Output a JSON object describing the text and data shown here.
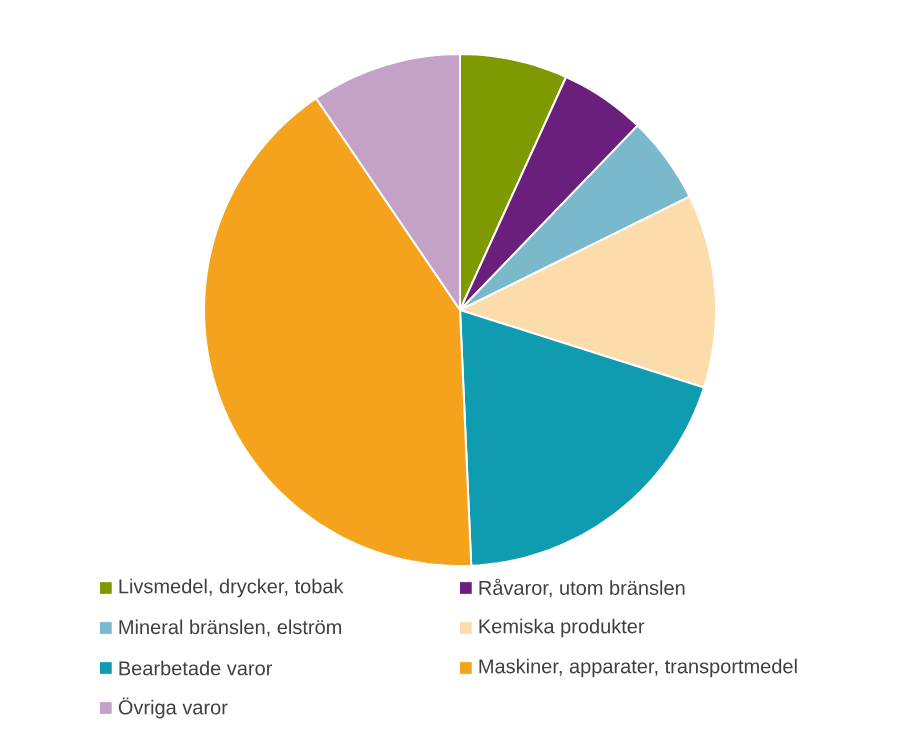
{
  "chart_data": {
    "type": "pie",
    "categories": [
      "Livsmedel, drycker, tobak",
      "Råvaror, utom bränslen",
      "Mineral bränslen, elström",
      "Kemiska produkter",
      "Bearbetade varor",
      "Maskiner, apparater, transportmedel",
      "Övriga varor"
    ],
    "values": [
      6.8,
      5.4,
      5.5,
      12.2,
      19.4,
      41.2,
      9.5
    ],
    "colors": [
      "#7f9a00",
      "#6b1f7c",
      "#7ab8cc",
      "#fcdcaa",
      "#109cb0",
      "#f5a31d",
      "#c4a2c8"
    ],
    "legend": "bottom"
  }
}
